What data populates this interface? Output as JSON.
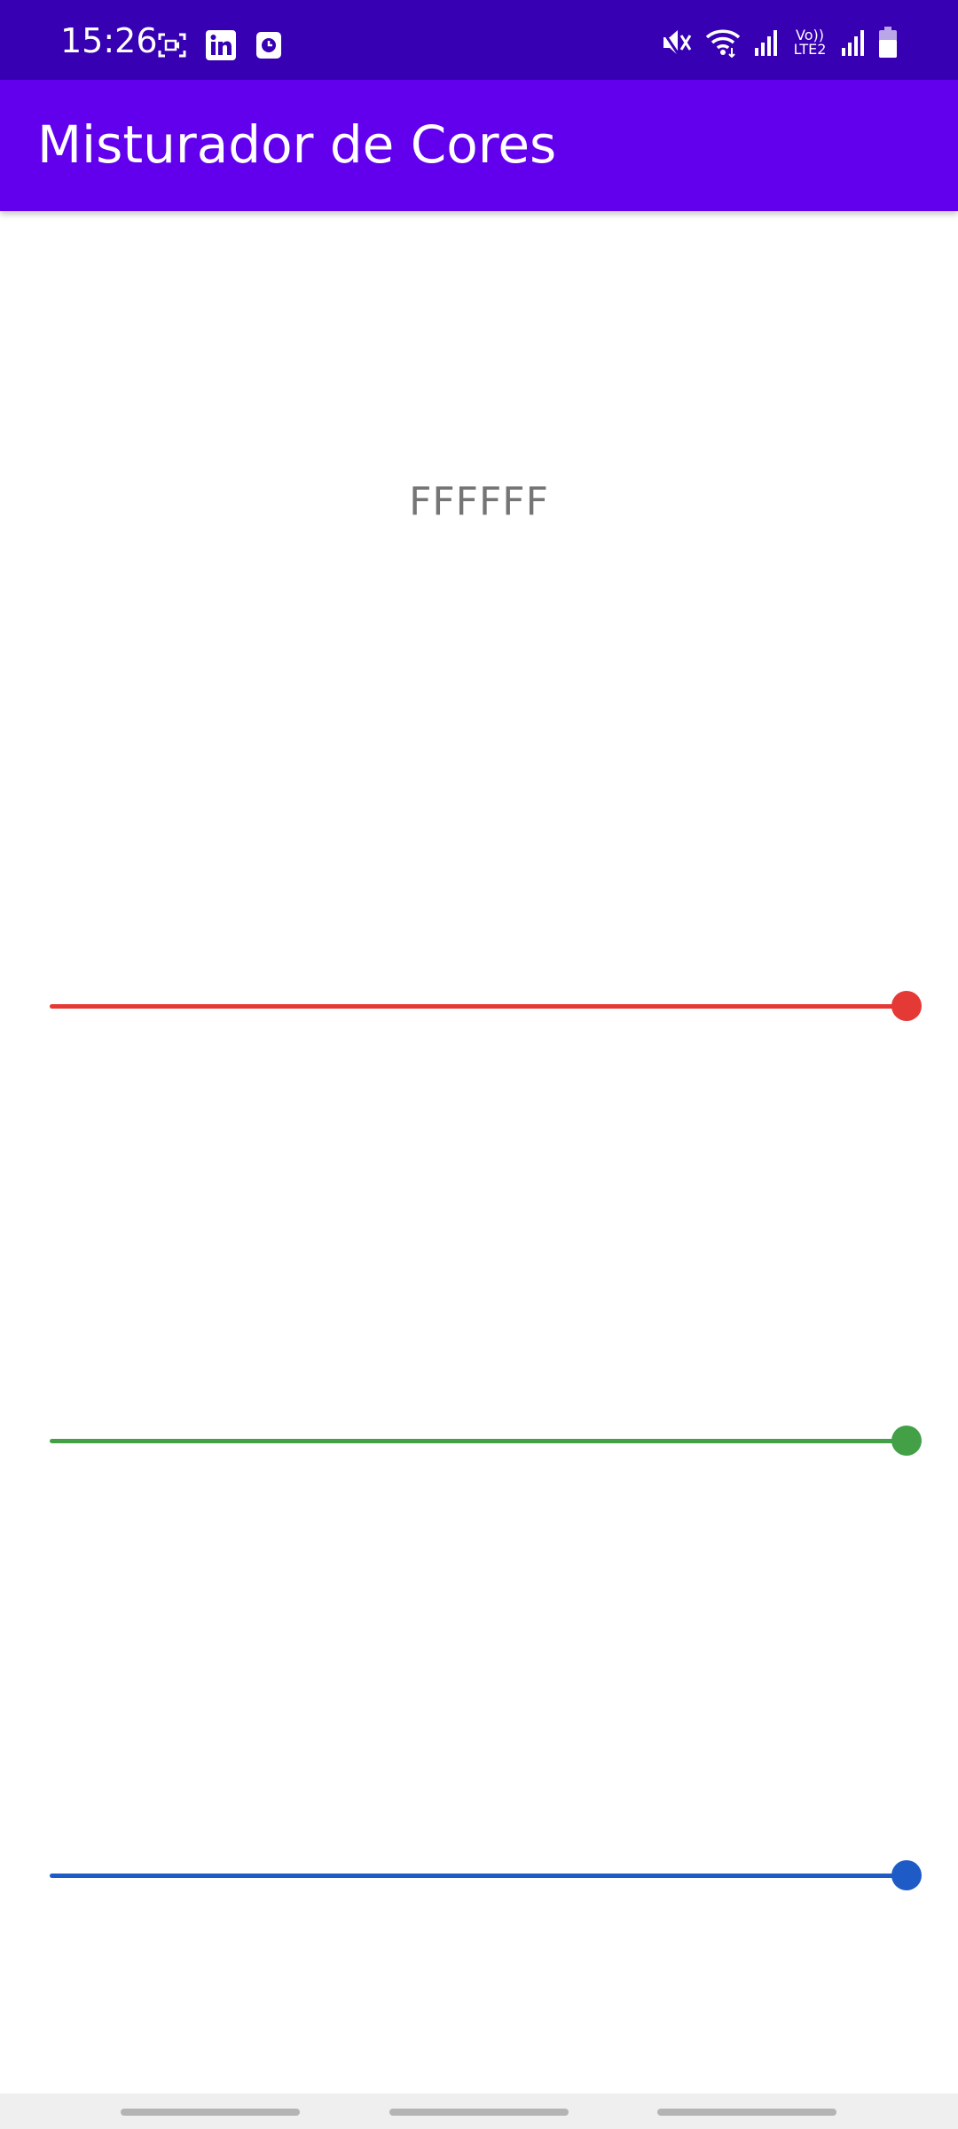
{
  "status_bar": {
    "time": "15:26",
    "left_icons": [
      "screen-record-icon",
      "linkedin-icon",
      "clock-app-icon"
    ],
    "right_icons": [
      "mute-icon",
      "wifi-icon",
      "signal-icon",
      "volte-lte2-icon",
      "signal-icon",
      "battery-icon"
    ],
    "lte_label_top": "Vo))",
    "lte_label_bottom": "LTE2",
    "background_color": "#3700b3"
  },
  "app_bar": {
    "title": "Misturador de Cores",
    "background_color": "#6200ee"
  },
  "color_preview": {
    "hex": "FFFFFF"
  },
  "sliders": [
    {
      "name": "red",
      "value": 1.0,
      "color": "#e53935"
    },
    {
      "name": "green",
      "value": 1.0,
      "color": "#43a047"
    },
    {
      "name": "blue",
      "value": 1.0,
      "color": "#1e5bc6"
    }
  ],
  "nav_bar": {
    "handles": 3
  }
}
